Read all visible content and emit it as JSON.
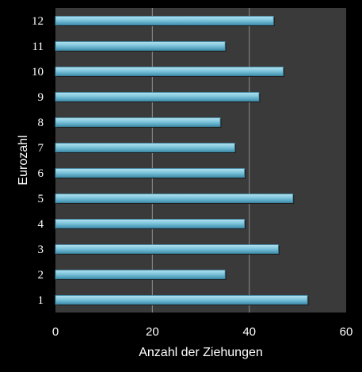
{
  "chart_data": {
    "type": "bar",
    "orientation": "horizontal",
    "categories": [
      "1",
      "2",
      "3",
      "4",
      "5",
      "6",
      "7",
      "8",
      "9",
      "10",
      "11",
      "12"
    ],
    "values": [
      52,
      35,
      46,
      39,
      49,
      39,
      37,
      34,
      42,
      47,
      35,
      45
    ],
    "xlabel": "Anzahl der Ziehungen",
    "ylabel": "Eurozahl",
    "xlim": [
      0,
      60
    ],
    "xticks": [
      "0",
      "20",
      "40",
      "60"
    ],
    "grid": "vertical",
    "legend": "none"
  },
  "colors": {
    "background": "#000000",
    "plot_area": "#3a3a3a",
    "gridline": "#8c8c8c",
    "bar_fill": "#7fc6dd",
    "bar_highlight": "#b5e2f0",
    "bar_shadow": "#3f8fad",
    "text": "#ffffff"
  }
}
